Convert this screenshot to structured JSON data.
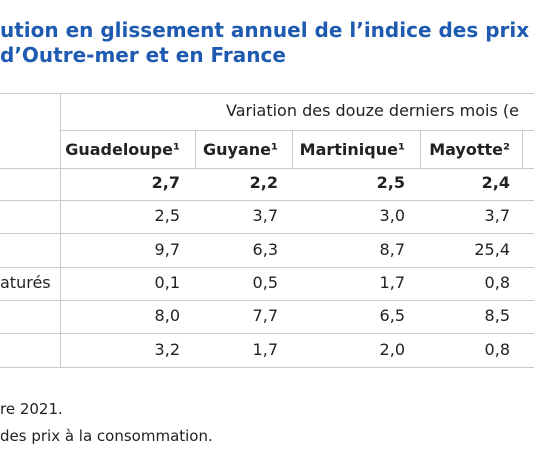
{
  "title": [
    "ution en glissement annuel de l’indice des prix d",
    "d’Outre-mer et en France"
  ],
  "table": {
    "group_header": "Variation des douze derniers mois (e",
    "columns": [
      "Guadeloupe¹",
      "Guyane¹",
      "Martinique¹",
      "Mayotte²"
    ],
    "rows": [
      {
        "values": [
          "2,7",
          "2,2",
          "2,5",
          "2,4"
        ]
      },
      {
        "values": [
          "2,5",
          "3,7",
          "3,0",
          "3,7"
        ]
      },
      {
        "values": [
          "9,7",
          "6,3",
          "8,7",
          "25,4"
        ]
      },
      {
        "label": "aturés",
        "values": [
          "0,1",
          "0,5",
          "1,7",
          "0,8"
        ]
      },
      {
        "values": [
          "8,0",
          "7,7",
          "6,5",
          "8,5"
        ]
      },
      {
        "values": [
          "3,2",
          "1,7",
          "2,0",
          "0,8"
        ]
      }
    ]
  },
  "notes": [
    "re 2021.",
    "des prix à la consommation."
  ]
}
